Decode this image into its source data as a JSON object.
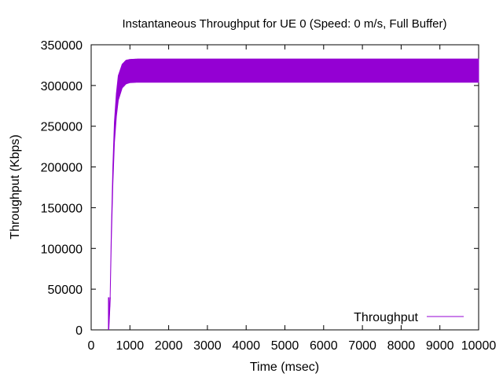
{
  "chart_data": {
    "type": "line",
    "title": "Instantaneous Throughput for UE 0 (Speed: 0 m/s, Full Buffer)",
    "xlabel": "Time (msec)",
    "ylabel": "Throughput (Kbps)",
    "xlim": [
      0,
      10000
    ],
    "ylim": [
      0,
      350000
    ],
    "x_ticks": [
      0,
      1000,
      2000,
      3000,
      4000,
      5000,
      6000,
      7000,
      8000,
      9000,
      10000
    ],
    "y_ticks": [
      0,
      50000,
      100000,
      150000,
      200000,
      250000,
      300000,
      350000
    ],
    "x_tick_labels": [
      "0",
      "1000",
      "2000",
      "3000",
      "4000",
      "5000",
      "6000",
      "7000",
      "8000",
      "9000",
      "10000"
    ],
    "y_tick_labels": [
      "0",
      "50000",
      "100000",
      "150000",
      "200000",
      "250000",
      "300000",
      "350000"
    ],
    "grid": false,
    "legend": {
      "position": "bottom-right",
      "entries": [
        "Throughput"
      ]
    },
    "series": [
      {
        "name": "Throughput",
        "color": "#9400d3",
        "start_x": 450,
        "upper_envelope": [
          [
            450,
            0
          ],
          [
            490,
            40000
          ],
          [
            520,
            120000
          ],
          [
            560,
            200000
          ],
          [
            600,
            255000
          ],
          [
            650,
            290000
          ],
          [
            700,
            312000
          ],
          [
            800,
            326000
          ],
          [
            900,
            331000
          ],
          [
            1000,
            332000
          ],
          [
            1200,
            332500
          ],
          [
            10000,
            332500
          ]
        ],
        "lower_envelope": [
          [
            450,
            0
          ],
          [
            490,
            40000
          ],
          [
            520,
            110000
          ],
          [
            560,
            180000
          ],
          [
            600,
            230000
          ],
          [
            650,
            262000
          ],
          [
            700,
            282000
          ],
          [
            800,
            297000
          ],
          [
            900,
            302000
          ],
          [
            1000,
            303500
          ],
          [
            1200,
            304000
          ],
          [
            10000,
            304000
          ]
        ]
      }
    ]
  }
}
